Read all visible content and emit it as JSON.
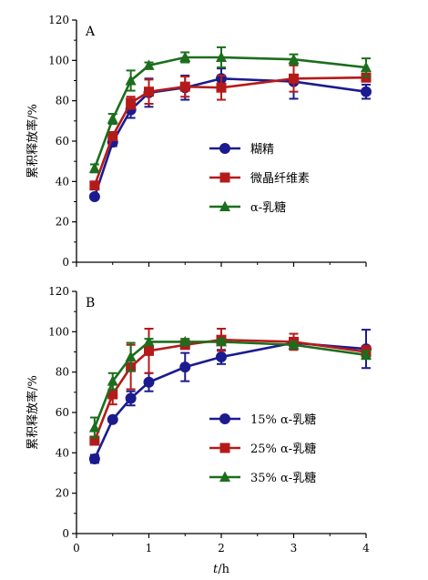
{
  "chart_data": [
    {
      "type": "line",
      "panel_label": "A",
      "ylabel": "累积释放率/%",
      "xlabel": "",
      "ylim": [
        0,
        120
      ],
      "xlim": [
        0,
        4
      ],
      "yticks": [
        "0",
        "20",
        "40",
        "60",
        "80",
        "100",
        "120"
      ],
      "xticks": [],
      "legend_position": "center-right",
      "x": [
        0.25,
        0.5,
        0.75,
        1,
        1.5,
        2,
        3,
        4
      ],
      "series": [
        {
          "name": "糊精",
          "color": "#1b1b8f",
          "marker": "circle",
          "values": [
            32.5,
            59.5,
            75.5,
            84,
            86.5,
            91,
            89.5,
            84.5
          ],
          "errors": [
            1,
            2,
            4,
            7,
            6,
            5,
            8.5,
            3.5
          ]
        },
        {
          "name": "微晶纤维素",
          "color": "#b51a1a",
          "marker": "square",
          "values": [
            38,
            62.5,
            79,
            84.5,
            87,
            86.5,
            91,
            91.5
          ],
          "errors": [
            1.5,
            2,
            3,
            6,
            5,
            6,
            6.5,
            2
          ]
        },
        {
          "name": "α-乳糖",
          "color": "#1c6e1c",
          "marker": "triangle",
          "values": [
            46.5,
            71,
            90,
            97.5,
            101.5,
            101.5,
            100.5,
            96.5
          ],
          "errors": [
            2,
            2.5,
            5,
            1.5,
            2.5,
            5,
            2.5,
            4.5
          ]
        }
      ]
    },
    {
      "type": "line",
      "panel_label": "B",
      "ylabel": "累积释放率/%",
      "xlabel": "t/h",
      "ylim": [
        0,
        120
      ],
      "xlim": [
        0,
        4
      ],
      "yticks": [
        "0",
        "20",
        "40",
        "60",
        "80",
        "100",
        "120"
      ],
      "xticks": [
        "0",
        "1",
        "2",
        "3",
        "4"
      ],
      "legend_position": "bottom-right",
      "x": [
        0.25,
        0.5,
        0.75,
        1,
        1.5,
        2,
        3,
        4
      ],
      "series": [
        {
          "name": "15% α-乳糖",
          "color": "#1b1b8f",
          "marker": "circle",
          "values": [
            37,
            56.5,
            67,
            75,
            82.5,
            87.5,
            94.5,
            91.5
          ],
          "errors": [
            2,
            1,
            3.5,
            4.5,
            7,
            3.5,
            2.5,
            9.5
          ]
        },
        {
          "name": "25% α-乳糖",
          "color": "#b51a1a",
          "marker": "square",
          "values": [
            46,
            69,
            82.5,
            90.5,
            93.5,
            96,
            95,
            90
          ],
          "errors": [
            2,
            5,
            11,
            11,
            2,
            5.5,
            4,
            3
          ]
        },
        {
          "name": "35% α-乳糖",
          "color": "#1c6e1c",
          "marker": "triangle",
          "values": [
            52.5,
            75.5,
            87.5,
            95,
            95,
            95,
            93.5,
            88.5
          ],
          "errors": [
            5,
            4,
            7,
            1.5,
            1.5,
            1.5,
            1.5,
            2
          ]
        }
      ]
    }
  ]
}
